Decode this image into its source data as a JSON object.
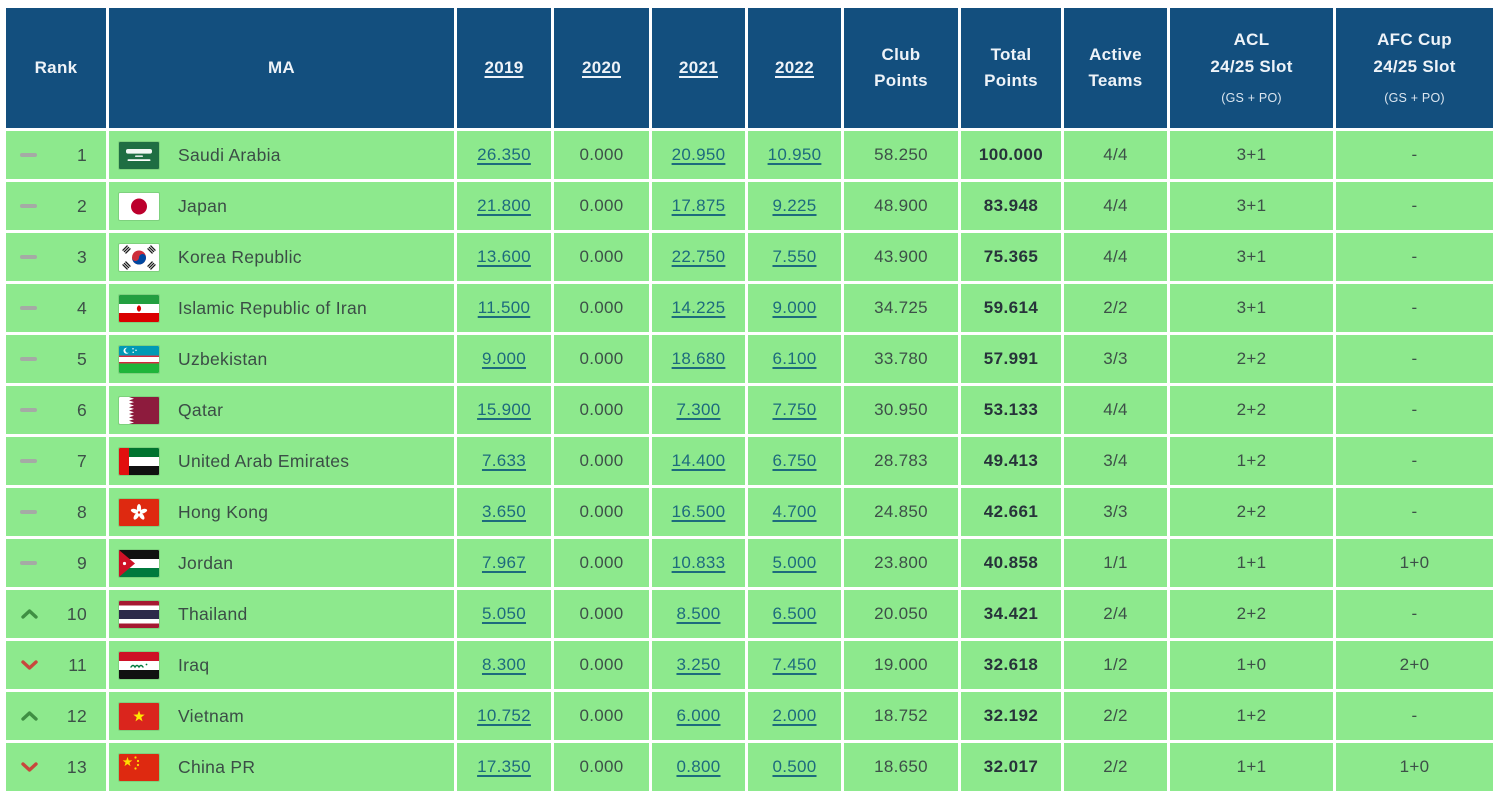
{
  "colors": {
    "header_bg": "#134f7e",
    "row_bg": "#8de98d",
    "link": "#1d6b7d",
    "trend_same": "#a5aaa5",
    "trend_up": "#3f8f43",
    "trend_down": "#c8473c"
  },
  "header": {
    "columns": [
      {
        "id": "rank",
        "line1": "Rank"
      },
      {
        "id": "ma",
        "line1": "MA"
      },
      {
        "id": "y2019",
        "line1": "2019",
        "link": true
      },
      {
        "id": "y2020",
        "line1": "2020",
        "link": true
      },
      {
        "id": "y2021",
        "line1": "2021",
        "link": true
      },
      {
        "id": "y2022",
        "line1": "2022",
        "link": true
      },
      {
        "id": "club",
        "line1": "Club",
        "line2": "Points"
      },
      {
        "id": "total",
        "line1": "Total",
        "line2": "Points"
      },
      {
        "id": "active",
        "line1": "Active",
        "line2": "Teams"
      },
      {
        "id": "acl",
        "line1": "ACL",
        "line2": "24/25 Slot",
        "sub": "(GS + PO)"
      },
      {
        "id": "afccup",
        "line1": "AFC Cup",
        "line2": "24/25 Slot",
        "sub": "(GS + PO)"
      }
    ]
  },
  "rows": [
    {
      "trend": "same",
      "rank": "1",
      "flag": "saudi-arabia",
      "country": "Saudi Arabia",
      "y2019": "26.350",
      "y2020": "0.000",
      "y2021": "20.950",
      "y2022": "10.950",
      "club": "58.250",
      "total": "100.000",
      "active": "4/4",
      "acl": "3+1",
      "afccup": "-"
    },
    {
      "trend": "same",
      "rank": "2",
      "flag": "japan",
      "country": "Japan",
      "y2019": "21.800",
      "y2020": "0.000",
      "y2021": "17.875",
      "y2022": "9.225",
      "club": "48.900",
      "total": "83.948",
      "active": "4/4",
      "acl": "3+1",
      "afccup": "-"
    },
    {
      "trend": "same",
      "rank": "3",
      "flag": "korea-republic",
      "country": "Korea Republic",
      "y2019": "13.600",
      "y2020": "0.000",
      "y2021": "22.750",
      "y2022": "7.550",
      "club": "43.900",
      "total": "75.365",
      "active": "4/4",
      "acl": "3+1",
      "afccup": "-"
    },
    {
      "trend": "same",
      "rank": "4",
      "flag": "iran",
      "country": "Islamic Republic of Iran",
      "y2019": "11.500",
      "y2020": "0.000",
      "y2021": "14.225",
      "y2022": "9.000",
      "club": "34.725",
      "total": "59.614",
      "active": "2/2",
      "acl": "3+1",
      "afccup": "-"
    },
    {
      "trend": "same",
      "rank": "5",
      "flag": "uzbekistan",
      "country": "Uzbekistan",
      "y2019": "9.000",
      "y2020": "0.000",
      "y2021": "18.680",
      "y2022": "6.100",
      "club": "33.780",
      "total": "57.991",
      "active": "3/3",
      "acl": "2+2",
      "afccup": "-"
    },
    {
      "trend": "same",
      "rank": "6",
      "flag": "qatar",
      "country": "Qatar",
      "y2019": "15.900",
      "y2020": "0.000",
      "y2021": "7.300",
      "y2022": "7.750",
      "club": "30.950",
      "total": "53.133",
      "active": "4/4",
      "acl": "2+2",
      "afccup": "-"
    },
    {
      "trend": "same",
      "rank": "7",
      "flag": "united-arab-emirates",
      "country": "United Arab Emirates",
      "y2019": "7.633",
      "y2020": "0.000",
      "y2021": "14.400",
      "y2022": "6.750",
      "club": "28.783",
      "total": "49.413",
      "active": "3/4",
      "acl": "1+2",
      "afccup": "-"
    },
    {
      "trend": "same",
      "rank": "8",
      "flag": "hong-kong",
      "country": "Hong Kong",
      "y2019": "3.650",
      "y2020": "0.000",
      "y2021": "16.500",
      "y2022": "4.700",
      "club": "24.850",
      "total": "42.661",
      "active": "3/3",
      "acl": "2+2",
      "afccup": "-"
    },
    {
      "trend": "same",
      "rank": "9",
      "flag": "jordan",
      "country": "Jordan",
      "y2019": "7.967",
      "y2020": "0.000",
      "y2021": "10.833",
      "y2022": "5.000",
      "club": "23.800",
      "total": "40.858",
      "active": "1/1",
      "acl": "1+1",
      "afccup": "1+0"
    },
    {
      "trend": "up",
      "rank": "10",
      "flag": "thailand",
      "country": "Thailand",
      "y2019": "5.050",
      "y2020": "0.000",
      "y2021": "8.500",
      "y2022": "6.500",
      "club": "20.050",
      "total": "34.421",
      "active": "2/4",
      "acl": "2+2",
      "afccup": "-"
    },
    {
      "trend": "down",
      "rank": "11",
      "flag": "iraq",
      "country": "Iraq",
      "y2019": "8.300",
      "y2020": "0.000",
      "y2021": "3.250",
      "y2022": "7.450",
      "club": "19.000",
      "total": "32.618",
      "active": "1/2",
      "acl": "1+0",
      "afccup": "2+0"
    },
    {
      "trend": "up",
      "rank": "12",
      "flag": "vietnam",
      "country": "Vietnam",
      "y2019": "10.752",
      "y2020": "0.000",
      "y2021": "6.000",
      "y2022": "2.000",
      "club": "18.752",
      "total": "32.192",
      "active": "2/2",
      "acl": "1+2",
      "afccup": "-"
    },
    {
      "trend": "down",
      "rank": "13",
      "flag": "china-pr",
      "country": "China PR",
      "y2019": "17.350",
      "y2020": "0.000",
      "y2021": "0.800",
      "y2022": "0.500",
      "club": "18.650",
      "total": "32.017",
      "active": "2/2",
      "acl": "1+1",
      "afccup": "1+0"
    }
  ],
  "year_link_columns": [
    "y2019",
    "y2021",
    "y2022"
  ]
}
